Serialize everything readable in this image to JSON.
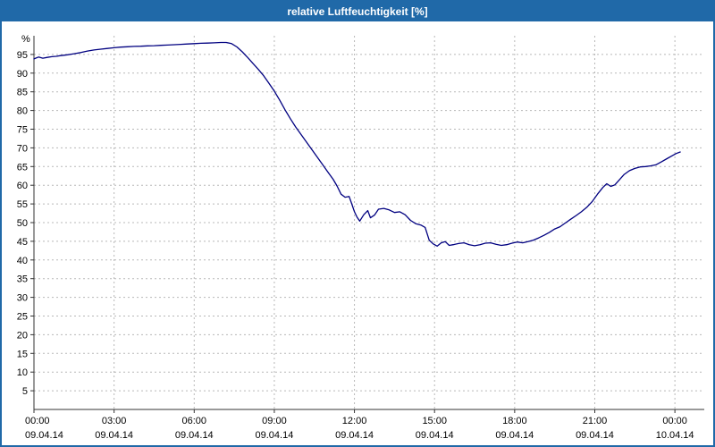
{
  "window": {
    "title": "relative Luftfeuchtigkeit [%]"
  },
  "chart_data": {
    "type": "line",
    "title": "relative Luftfeuchtigkeit [%]",
    "ylabel": "%",
    "xlabel": "",
    "ylim": [
      0,
      100
    ],
    "xlim": [
      0,
      25.1
    ],
    "grid": true,
    "legend": "none",
    "y_ticks": [
      5,
      10,
      15,
      20,
      25,
      30,
      35,
      40,
      45,
      50,
      55,
      60,
      65,
      70,
      75,
      80,
      85,
      90,
      95
    ],
    "x_ticks": [
      {
        "h": 0,
        "time": "00:00",
        "date": "09.04.14"
      },
      {
        "h": 3,
        "time": "03:00",
        "date": "09.04.14"
      },
      {
        "h": 6,
        "time": "06:00",
        "date": "09.04.14"
      },
      {
        "h": 9,
        "time": "09:00",
        "date": "09.04.14"
      },
      {
        "h": 12,
        "time": "12:00",
        "date": "09.04.14"
      },
      {
        "h": 15,
        "time": "15:00",
        "date": "09.04.14"
      },
      {
        "h": 18,
        "time": "18:00",
        "date": "09.04.14"
      },
      {
        "h": 21,
        "time": "21:00",
        "date": "09.04.14"
      },
      {
        "h": 24,
        "time": "00:00",
        "date": "10.04.14"
      }
    ],
    "series": [
      {
        "name": "relative Luftfeuchtigkeit",
        "points": [
          [
            0,
            93.8
          ],
          [
            0.17,
            94.3
          ],
          [
            0.33,
            94.0
          ],
          [
            0.5,
            94.2
          ],
          [
            0.67,
            94.4
          ],
          [
            0.83,
            94.5
          ],
          [
            1,
            94.7
          ],
          [
            1.25,
            94.9
          ],
          [
            1.5,
            95.2
          ],
          [
            1.75,
            95.5
          ],
          [
            2,
            95.9
          ],
          [
            2.25,
            96.2
          ],
          [
            2.5,
            96.4
          ],
          [
            2.75,
            96.6
          ],
          [
            3,
            96.8
          ],
          [
            3.25,
            96.95
          ],
          [
            3.5,
            97.05
          ],
          [
            3.75,
            97.15
          ],
          [
            4,
            97.2
          ],
          [
            4.25,
            97.3
          ],
          [
            4.5,
            97.35
          ],
          [
            4.75,
            97.45
          ],
          [
            5,
            97.5
          ],
          [
            5.25,
            97.6
          ],
          [
            5.5,
            97.7
          ],
          [
            5.75,
            97.8
          ],
          [
            6,
            97.9
          ],
          [
            6.25,
            98.0
          ],
          [
            6.5,
            98.05
          ],
          [
            6.75,
            98.1
          ],
          [
            7,
            98.2
          ],
          [
            7.2,
            98.2
          ],
          [
            7.4,
            97.9
          ],
          [
            7.6,
            97.0
          ],
          [
            7.8,
            95.7
          ],
          [
            8,
            94.2
          ],
          [
            8.2,
            92.6
          ],
          [
            8.4,
            91.0
          ],
          [
            8.6,
            89.3
          ],
          [
            8.8,
            87.3
          ],
          [
            9,
            85.2
          ],
          [
            9.2,
            82.8
          ],
          [
            9.4,
            80.2
          ],
          [
            9.6,
            77.8
          ],
          [
            9.8,
            75.6
          ],
          [
            10,
            73.6
          ],
          [
            10.2,
            71.6
          ],
          [
            10.4,
            69.6
          ],
          [
            10.6,
            67.6
          ],
          [
            10.8,
            65.6
          ],
          [
            11,
            63.6
          ],
          [
            11.2,
            61.6
          ],
          [
            11.35,
            59.8
          ],
          [
            11.5,
            57.6
          ],
          [
            11.65,
            56.8
          ],
          [
            11.8,
            57.0
          ],
          [
            11.9,
            55.0
          ],
          [
            12,
            52.9
          ],
          [
            12.1,
            51.4
          ],
          [
            12.2,
            50.4
          ],
          [
            12.35,
            52.1
          ],
          [
            12.5,
            53.2
          ],
          [
            12.6,
            51.3
          ],
          [
            12.75,
            52.0
          ],
          [
            12.9,
            53.6
          ],
          [
            13.1,
            53.8
          ],
          [
            13.3,
            53.4
          ],
          [
            13.5,
            52.7
          ],
          [
            13.7,
            52.9
          ],
          [
            13.9,
            52.1
          ],
          [
            14.1,
            50.6
          ],
          [
            14.3,
            49.7
          ],
          [
            14.5,
            49.3
          ],
          [
            14.65,
            48.7
          ],
          [
            14.8,
            45.3
          ],
          [
            14.95,
            44.3
          ],
          [
            15.1,
            43.7
          ],
          [
            15.25,
            44.6
          ],
          [
            15.4,
            44.9
          ],
          [
            15.55,
            43.9
          ],
          [
            15.7,
            44.1
          ],
          [
            15.9,
            44.4
          ],
          [
            16.1,
            44.6
          ],
          [
            16.3,
            44.1
          ],
          [
            16.5,
            43.8
          ],
          [
            16.7,
            44.1
          ],
          [
            16.9,
            44.5
          ],
          [
            17.1,
            44.6
          ],
          [
            17.3,
            44.2
          ],
          [
            17.5,
            43.9
          ],
          [
            17.7,
            44.1
          ],
          [
            17.9,
            44.5
          ],
          [
            18.1,
            44.8
          ],
          [
            18.3,
            44.6
          ],
          [
            18.5,
            44.9
          ],
          [
            18.7,
            45.3
          ],
          [
            18.9,
            45.9
          ],
          [
            19.1,
            46.6
          ],
          [
            19.3,
            47.4
          ],
          [
            19.5,
            48.3
          ],
          [
            19.7,
            48.9
          ],
          [
            19.9,
            49.9
          ],
          [
            20.1,
            50.9
          ],
          [
            20.3,
            51.9
          ],
          [
            20.5,
            52.9
          ],
          [
            20.7,
            54.1
          ],
          [
            20.9,
            55.6
          ],
          [
            21.1,
            57.6
          ],
          [
            21.3,
            59.4
          ],
          [
            21.45,
            60.4
          ],
          [
            21.6,
            59.7
          ],
          [
            21.75,
            60.1
          ],
          [
            21.9,
            61.3
          ],
          [
            22.1,
            62.9
          ],
          [
            22.3,
            63.9
          ],
          [
            22.5,
            64.5
          ],
          [
            22.7,
            64.9
          ],
          [
            22.9,
            65.0
          ],
          [
            23.1,
            65.2
          ],
          [
            23.3,
            65.5
          ],
          [
            23.5,
            66.3
          ],
          [
            23.7,
            67.1
          ],
          [
            23.9,
            67.9
          ],
          [
            24.05,
            68.5
          ],
          [
            24.2,
            68.9
          ]
        ]
      }
    ],
    "colors": {
      "line": "#000080",
      "grid": "#b8b8b8",
      "axis": "#333333",
      "text": "#000000",
      "title_bar_bg": "#2069a8",
      "frame": "#2069a8",
      "plot_bg": "#ffffff"
    }
  }
}
